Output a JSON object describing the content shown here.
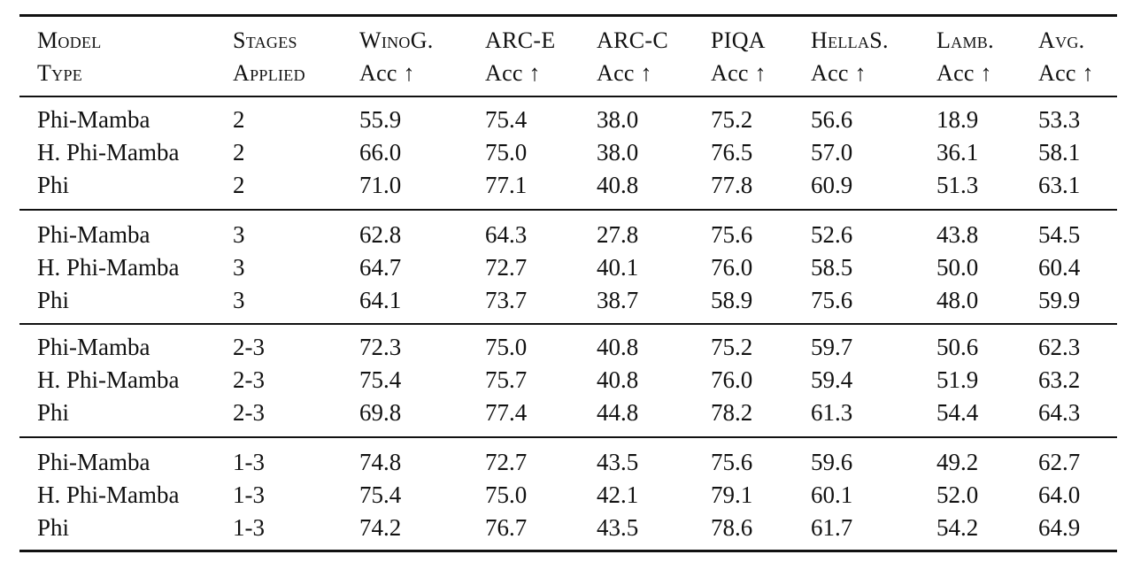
{
  "table": {
    "columns": [
      {
        "line1": "Model",
        "line2": "Type"
      },
      {
        "line1": "Stages",
        "line2": "Applied"
      },
      {
        "line1": "WinoG.",
        "line2": "Acc ↑"
      },
      {
        "line1": "ARC-E",
        "line2": "Acc ↑"
      },
      {
        "line1": "ARC-C",
        "line2": "Acc ↑"
      },
      {
        "line1": "PIQA",
        "line2": "Acc ↑"
      },
      {
        "line1": "HellaS.",
        "line2": "Acc ↑"
      },
      {
        "line1": "Lamb.",
        "line2": "Acc ↑"
      },
      {
        "line1": "Avg.",
        "line2": "Acc ↑"
      }
    ],
    "groups": [
      {
        "rows": [
          [
            "Phi-Mamba",
            "2",
            "55.9",
            "75.4",
            "38.0",
            "75.2",
            "56.6",
            "18.9",
            "53.3"
          ],
          [
            "H. Phi-Mamba",
            "2",
            "66.0",
            "75.0",
            "38.0",
            "76.5",
            "57.0",
            "36.1",
            "58.1"
          ],
          [
            "Phi",
            "2",
            "71.0",
            "77.1",
            "40.8",
            "77.8",
            "60.9",
            "51.3",
            "63.1"
          ]
        ]
      },
      {
        "rows": [
          [
            "Phi-Mamba",
            "3",
            "62.8",
            "64.3",
            "27.8",
            "75.6",
            "52.6",
            "43.8",
            "54.5"
          ],
          [
            "H. Phi-Mamba",
            "3",
            "64.7",
            "72.7",
            "40.1",
            "76.0",
            "58.5",
            "50.0",
            "60.4"
          ],
          [
            "Phi",
            "3",
            "64.1",
            "73.7",
            "38.7",
            "58.9",
            "75.6",
            "48.0",
            "59.9"
          ]
        ]
      },
      {
        "rows": [
          [
            "Phi-Mamba",
            "2-3",
            "72.3",
            "75.0",
            "40.8",
            "75.2",
            "59.7",
            "50.6",
            "62.3"
          ],
          [
            "H. Phi-Mamba",
            "2-3",
            "75.4",
            "75.7",
            "40.8",
            "76.0",
            "59.4",
            "51.9",
            "63.2"
          ],
          [
            "Phi",
            "2-3",
            "69.8",
            "77.4",
            "44.8",
            "78.2",
            "61.3",
            "54.4",
            "64.3"
          ]
        ]
      },
      {
        "rows": [
          [
            "Phi-Mamba",
            "1-3",
            "74.8",
            "72.7",
            "43.5",
            "75.6",
            "59.6",
            "49.2",
            "62.7"
          ],
          [
            "H. Phi-Mamba",
            "1-3",
            "75.4",
            "75.0",
            "42.1",
            "79.1",
            "60.1",
            "52.0",
            "64.0"
          ],
          [
            "Phi",
            "1-3",
            "74.2",
            "76.7",
            "43.5",
            "78.6",
            "61.7",
            "54.2",
            "64.9"
          ]
        ]
      }
    ]
  }
}
